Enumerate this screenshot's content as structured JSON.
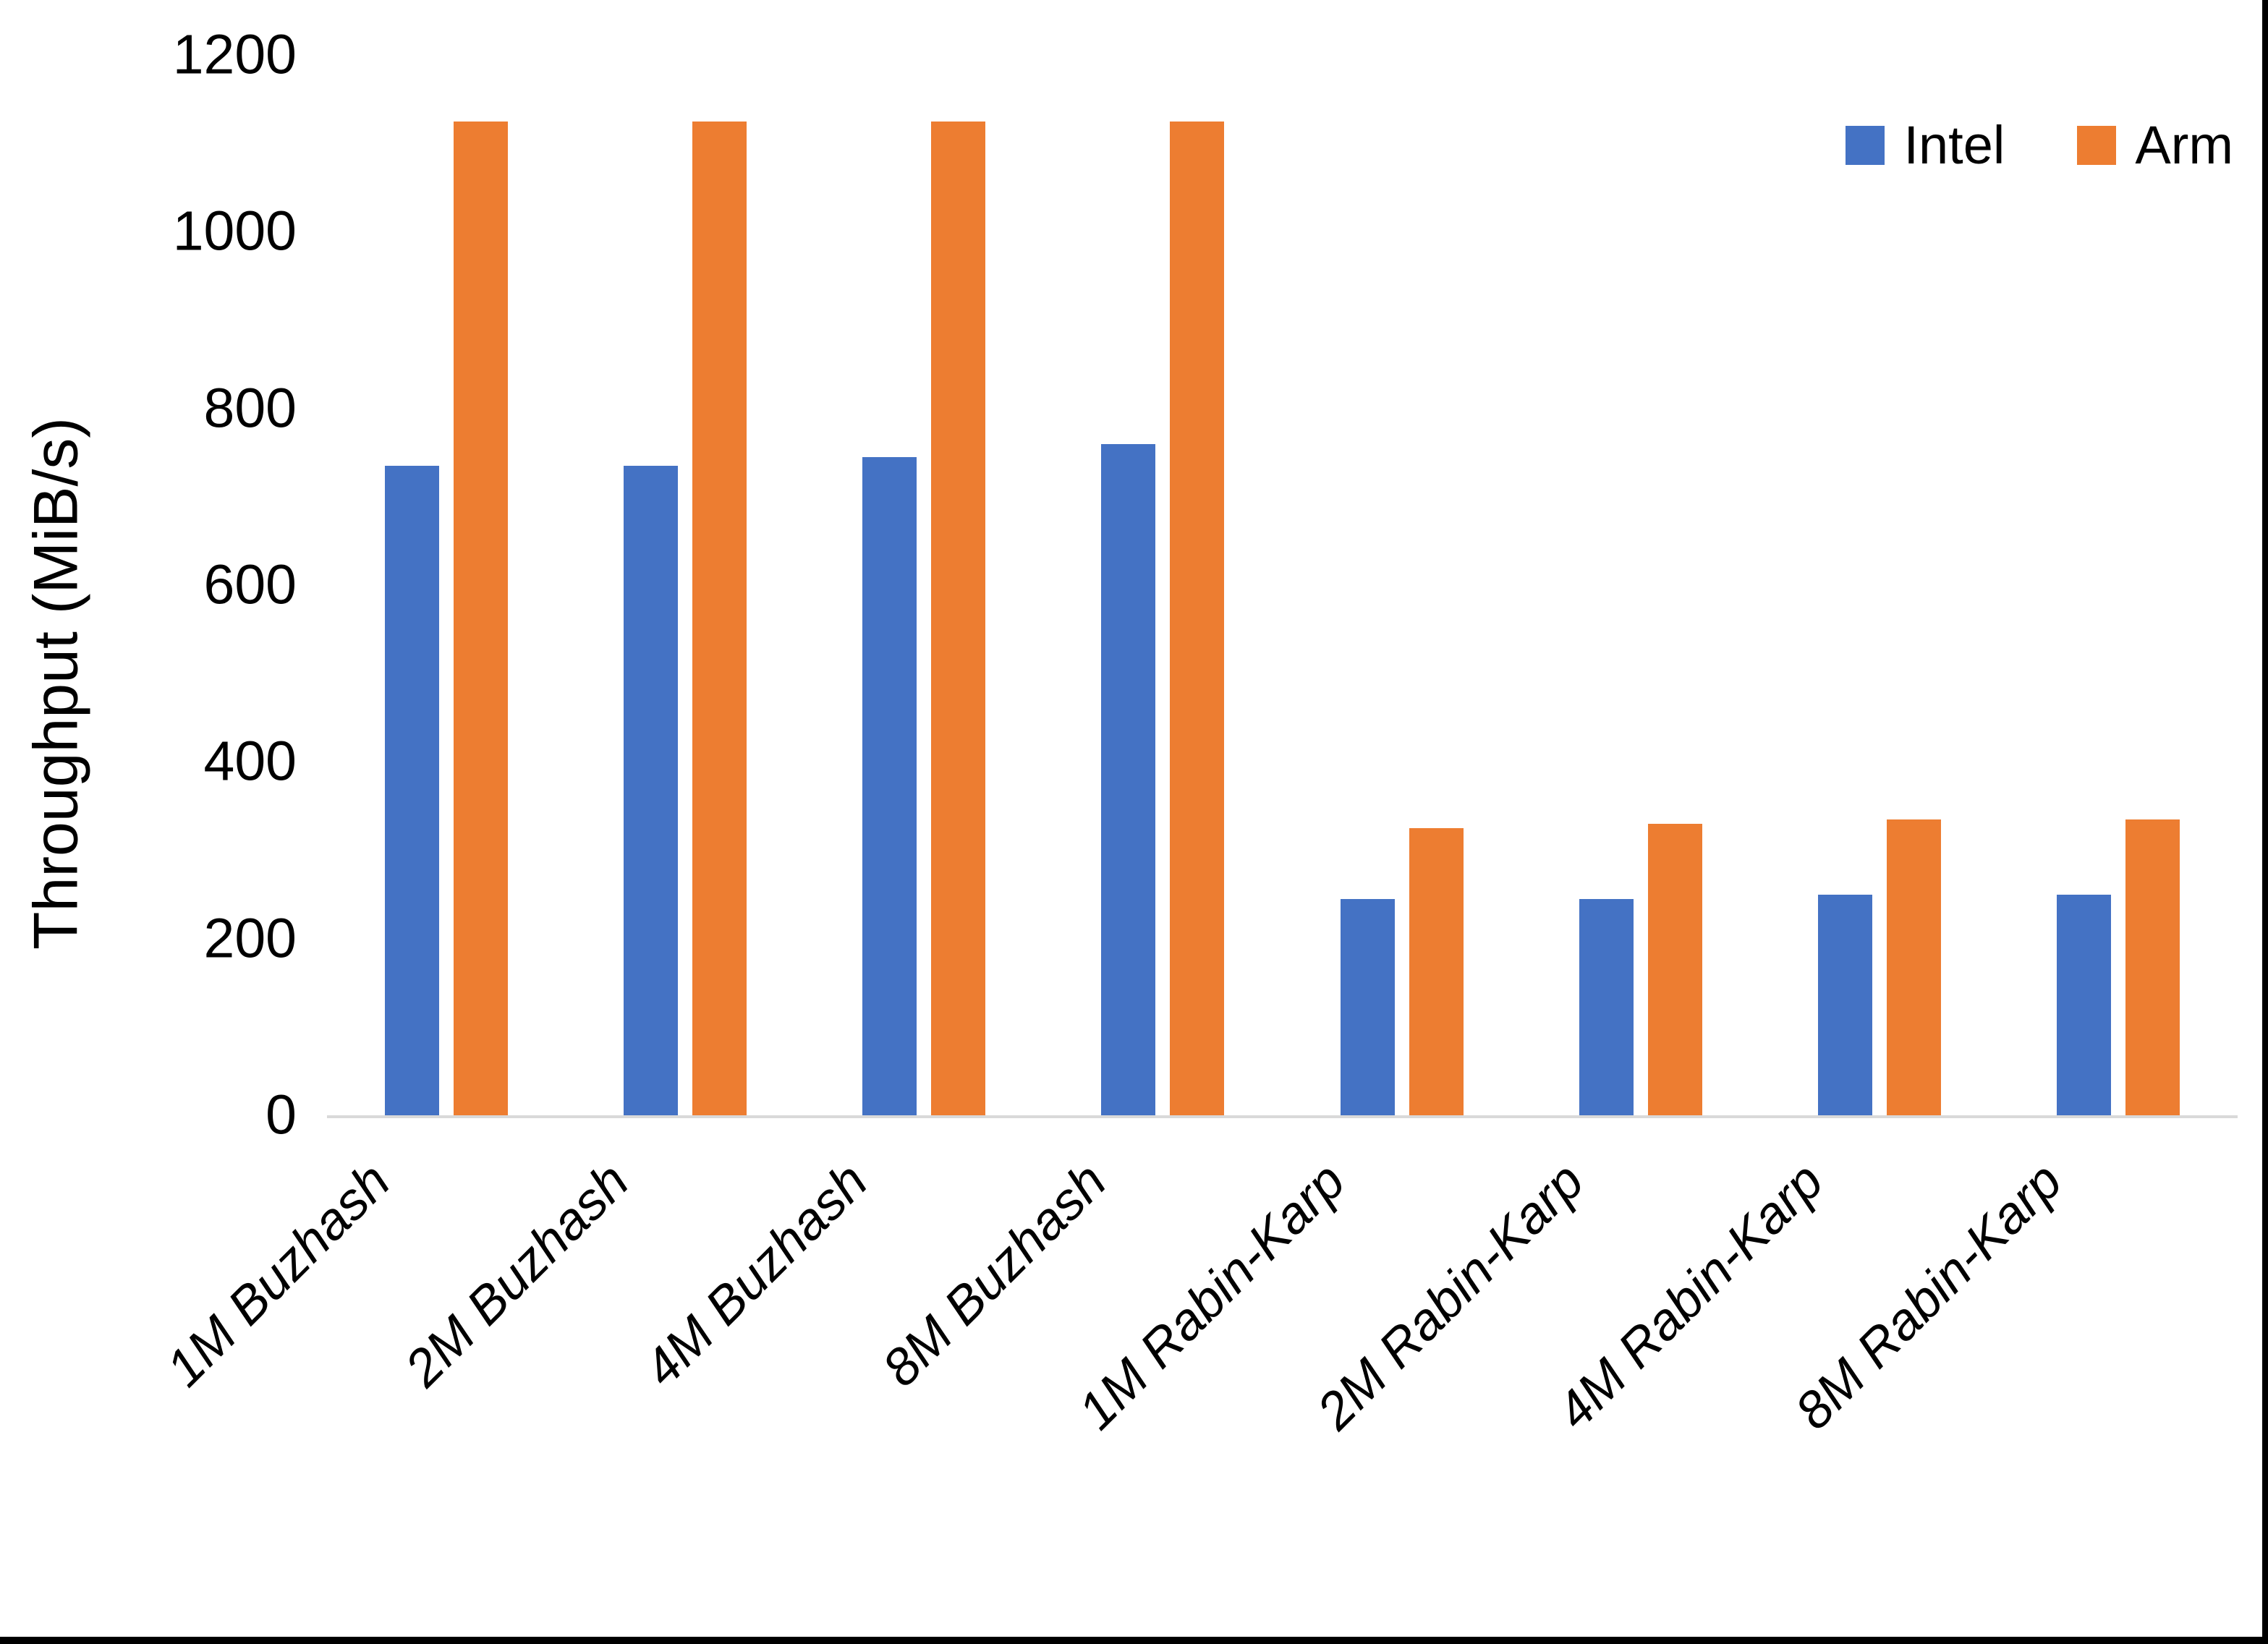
{
  "chart_data": {
    "type": "bar",
    "title": "",
    "categories": [
      "1M Buzhash",
      "2M Buzhash",
      "4M Buzhash",
      "8M Buzhash",
      "1M Rabin-Karp",
      "2M Rabin-Karp",
      "4M Rabin-Karp",
      "8M Rabin-Karp"
    ],
    "series": [
      {
        "name": "Intel",
        "color": "#4472C4",
        "values": [
          735,
          735,
          745,
          760,
          245,
          245,
          250,
          250
        ]
      },
      {
        "name": "Arm",
        "color": "#ED7D31",
        "values": [
          1125,
          1125,
          1125,
          1125,
          325,
          330,
          335,
          335
        ]
      }
    ],
    "xlabel": "",
    "ylabel": "Throughput (MiB/s)",
    "yticks": [
      0,
      200,
      400,
      600,
      800,
      1000,
      1200
    ],
    "ylim": [
      0,
      1200
    ],
    "grid": false,
    "legend_position": "top-right",
    "axis_line_color": "#D9D9D9",
    "text_color": "#000000",
    "background_color": "#FFFFFF"
  }
}
